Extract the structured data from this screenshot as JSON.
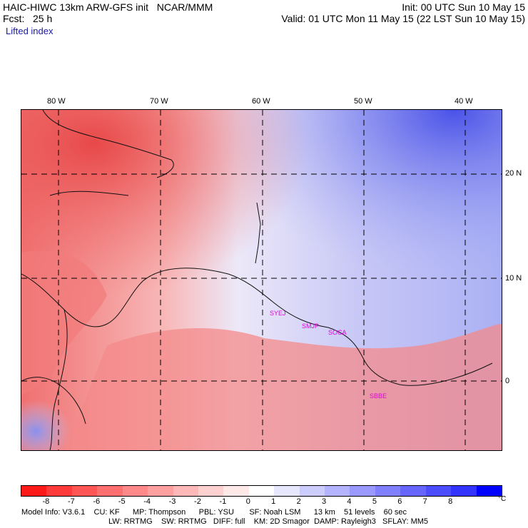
{
  "header": {
    "title_left": "HAIC-HIWC 13km ARW-GFS init   NCAR/MMM",
    "forecast": "Fcst:   25 h",
    "init": "Init: 00 UTC Sun 10 May 15",
    "valid": "Valid: 01 UTC Mon 11 May 15 (22 LST Sun 10 May 15)",
    "field": "Lifted index"
  },
  "axes": {
    "lon_labels": [
      "80 W",
      "70 W",
      "60 W",
      "50 W",
      "40 W"
    ],
    "lat_labels": [
      "20 N",
      "10 N",
      "0"
    ]
  },
  "stations": [
    "SYEJ",
    "SMJP",
    "SOCA",
    "SBBE"
  ],
  "colorbar": {
    "ticks": [
      "-8",
      "-7",
      "-6",
      "-5",
      "-4",
      "-3",
      "-2",
      "-1",
      "0",
      "1",
      "2",
      "3",
      "4",
      "5",
      "6",
      "7",
      "8"
    ],
    "unit": "°C",
    "colors": [
      "#ff1a1a",
      "#ff3a3a",
      "#ff5555",
      "#ff6f6f",
      "#ff8888",
      "#ffa0a0",
      "#ffb8b8",
      "#ffd0d0",
      "#ffe8e8",
      "#ffffff",
      "#e6e6ff",
      "#ccccff",
      "#b3b3ff",
      "#9999ff",
      "#7f7fff",
      "#6666ff",
      "#4c4cff",
      "#3333ff",
      "#0000ff"
    ]
  },
  "footer": {
    "line1": "Model Info: V3.6.1    CU: KF      MP: Thompson      PBL: YSU       SF: Noah LSM      13 km    51 levels    60 sec",
    "line2": "LW: RRTMG    SW: RRTMG   DIFF: full    KM: 2D Smagor  DAMP: Rayleigh3   SFLAY: MM5"
  }
}
